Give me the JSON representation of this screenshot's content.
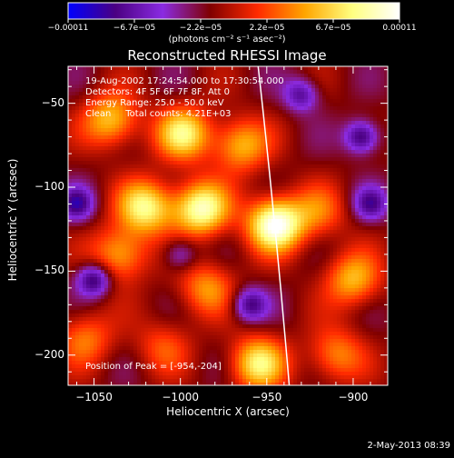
{
  "chart_data": {
    "type": "heatmap",
    "title": "Reconstructed RHESSI Image",
    "xlabel": "Heliocentric X (arcsec)",
    "ylabel": "Heliocentric Y (arcsec)",
    "xlim": [
      -1065,
      -880
    ],
    "ylim": [
      -218,
      -28
    ],
    "x_ticks": [
      -1050,
      -1000,
      -950,
      -900
    ],
    "y_ticks": [
      -50,
      -100,
      -150,
      -200
    ],
    "x_tick_labels": [
      "−1050",
      "−1000",
      "−950",
      "−900"
    ],
    "y_tick_labels": [
      "−50",
      "−100",
      "−150",
      "−200"
    ],
    "colorbar": {
      "min": -0.00011,
      "max": 0.00011,
      "tick_labels": [
        "−0.00011",
        "−6.7e−05",
        "−2.2e−05",
        "2.2e−05",
        "6.7e−05",
        "0.00011"
      ],
      "unit_label": "(photons cm⁻² s⁻¹ asec⁻²)",
      "colormap": [
        "#0000ff",
        "#4b0082",
        "#8a2be2",
        "#800000",
        "#ff2a00",
        "#ffa500",
        "#ffff80",
        "#ffffff"
      ]
    },
    "annotations": [
      "19-Aug-2002 17:24:54.000 to 17:30:54.000",
      "Detectors: 4F 5F 6F 7F 8F, Att 0",
      "Energy Range: 25.0 - 50.0 keV",
      "Clean     Total counts: 4.21E+03"
    ],
    "peak_label": "Position of Peak = [-954,-204]",
    "limb_curve": [
      [
        -955,
        -28
      ],
      [
        -945,
        -120
      ],
      [
        -937,
        -218
      ]
    ],
    "sources": [
      {
        "x": -945,
        "y": -122,
        "strength": 1.0
      },
      {
        "x": -988,
        "y": -113,
        "strength": 0.85
      },
      {
        "x": -1020,
        "y": -112,
        "strength": 0.75
      },
      {
        "x": -998,
        "y": -68,
        "strength": 0.7
      },
      {
        "x": -1040,
        "y": -60,
        "strength": 0.6
      },
      {
        "x": -965,
        "y": -75,
        "strength": 0.55
      },
      {
        "x": -1035,
        "y": -140,
        "strength": 0.55
      },
      {
        "x": -985,
        "y": -160,
        "strength": 0.45
      },
      {
        "x": -955,
        "y": -205,
        "strength": 0.7
      },
      {
        "x": -900,
        "y": -155,
        "strength": 0.55
      },
      {
        "x": -910,
        "y": -200,
        "strength": 0.45
      },
      {
        "x": -1055,
        "y": -190,
        "strength": 0.4
      },
      {
        "x": -920,
        "y": -115,
        "strength": 0.35
      },
      {
        "x": -1010,
        "y": -195,
        "strength": 0.3
      }
    ],
    "negatives": [
      {
        "x": -1050,
        "y": -155,
        "strength": 0.6
      },
      {
        "x": -895,
        "y": -70,
        "strength": 0.6
      },
      {
        "x": -960,
        "y": -170,
        "strength": 0.5
      },
      {
        "x": -1060,
        "y": -110,
        "strength": 0.5
      },
      {
        "x": -890,
        "y": -110,
        "strength": 0.45
      },
      {
        "x": -930,
        "y": -45,
        "strength": 0.45
      },
      {
        "x": -1000,
        "y": -140,
        "strength": 0.35
      }
    ]
  },
  "timestamp": "2-May-2013 08:39"
}
